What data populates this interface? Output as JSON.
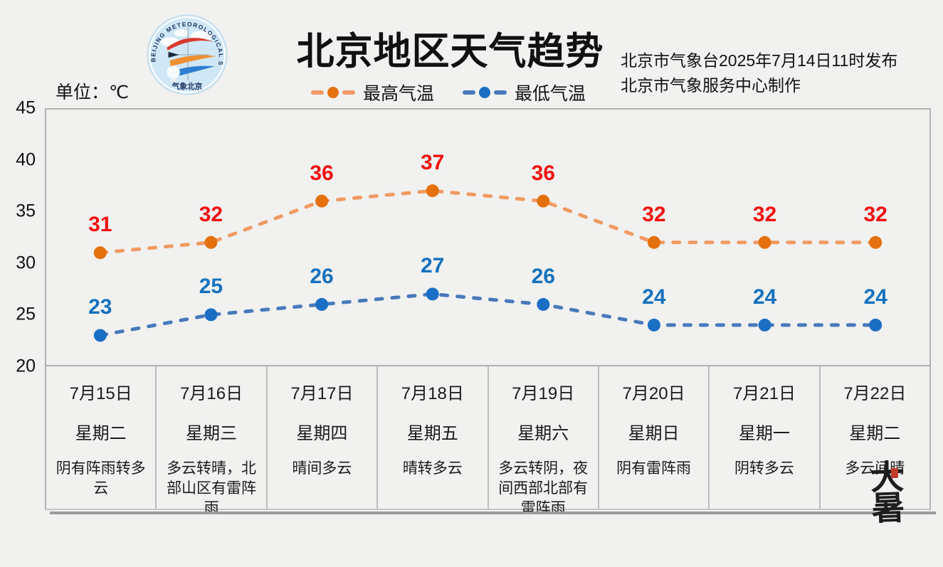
{
  "header": {
    "title": "北京地区天气趋势",
    "issued_by": "北京市气象台2025年7月14日11时发布",
    "produced_by": "北京市气象服务中心制作",
    "unit_label": "单位：℃",
    "logo_ring_text": "BEIJING METEOROLOGICAL SERVICE",
    "logo_bottom_text": "气象北京"
  },
  "legend": {
    "high": {
      "label": "最高气温",
      "line_color": "#F09A62",
      "marker_color": "#E5700E"
    },
    "low": {
      "label": "最低气温",
      "line_color": "#4879BA",
      "marker_color": "#1A6FC4"
    }
  },
  "chart_data": {
    "type": "line",
    "title": "北京地区天气趋势",
    "ylabel": "℃",
    "ylim": [
      20,
      45
    ],
    "yticks": [
      45,
      40,
      35,
      30,
      25,
      20
    ],
    "grid": false,
    "legend_position": "top",
    "categories": [
      {
        "date": "7月15日",
        "weekday": "星期二",
        "weather": "阴有阵雨转多云"
      },
      {
        "date": "7月16日",
        "weekday": "星期三",
        "weather": "多云转晴，北部山区有雷阵雨"
      },
      {
        "date": "7月17日",
        "weekday": "星期四",
        "weather": "晴间多云"
      },
      {
        "date": "7月18日",
        "weekday": "星期五",
        "weather": "晴转多云"
      },
      {
        "date": "7月19日",
        "weekday": "星期六",
        "weather": "多云转阴，夜间西部北部有雷阵雨"
      },
      {
        "date": "7月20日",
        "weekday": "星期日",
        "weather": "阴有雷阵雨"
      },
      {
        "date": "7月21日",
        "weekday": "星期一",
        "weather": "阴转多云"
      },
      {
        "date": "7月22日",
        "weekday": "星期二",
        "weather": "多云间晴"
      }
    ],
    "series": [
      {
        "name": "最高气温",
        "values": [
          31,
          32,
          36,
          37,
          36,
          32,
          32,
          32
        ],
        "line_color": "#F09A62",
        "marker_color": "#E5700E",
        "label_color": "#F21010"
      },
      {
        "name": "最低气温",
        "values": [
          23,
          25,
          26,
          27,
          26,
          24,
          24,
          24
        ],
        "line_color": "#4879BA",
        "marker_color": "#1A6FC4",
        "label_color": "#1572BE"
      }
    ]
  },
  "solar_term": "大暑"
}
